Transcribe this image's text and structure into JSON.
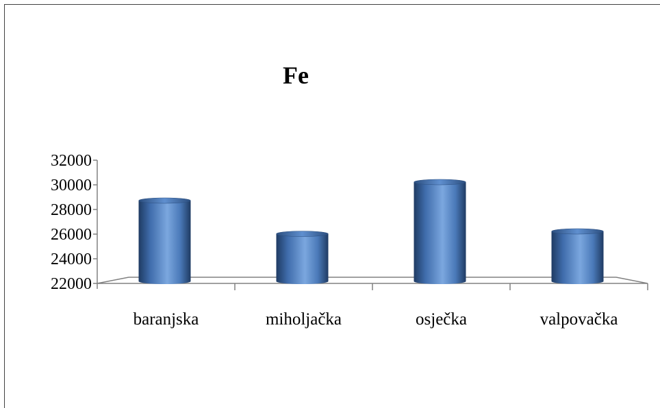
{
  "chart_data": {
    "type": "bar",
    "title": "Fe",
    "categories": [
      "baranjska",
      "miholjačka",
      "osječka",
      "valpovačka"
    ],
    "values": [
      28500,
      25800,
      30000,
      26000
    ],
    "ylim": [
      22000,
      32000
    ],
    "yticks": [
      "32000",
      "30000",
      "28000",
      "26000",
      "24000",
      "22000"
    ],
    "xlabel": "",
    "ylabel": "",
    "grid": false,
    "legend": "none",
    "bar_color": "#4f81bd",
    "bar_style": "3d-cylinder"
  }
}
